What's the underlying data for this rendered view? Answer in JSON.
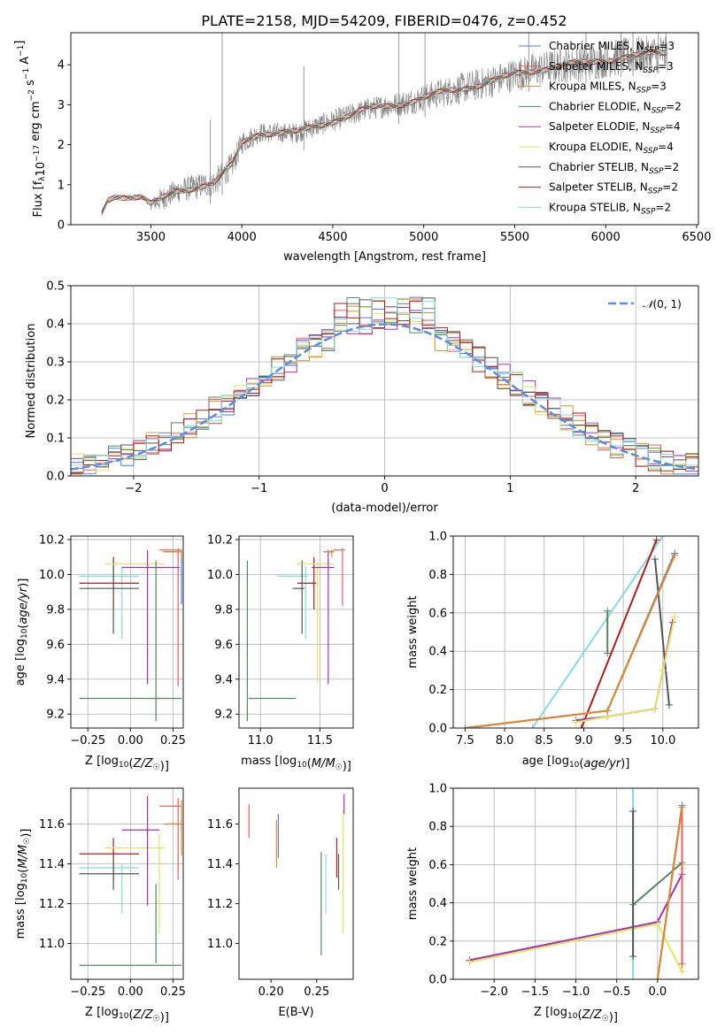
{
  "figure_title": "PLATE=2158, MJD=54209, FIBERID=0476, z=0.452",
  "colors": {
    "Chabrier MILES": "#4d7fd6",
    "Salpeter MILES": "#f45b5b",
    "Kroupa MILES": "#e08a2b",
    "Chabrier ELODIE": "#55885f",
    "Salpeter ELODIE": "#a532b5",
    "Kroupa ELODIE": "#dfe65a",
    "Chabrier STELIB": "#555555",
    "Salpeter STELIB": "#b21c1c",
    "Kroupa STELIB": "#86dbe0",
    "Normal": "#5b8ee0",
    "data": "#808080"
  },
  "legend": [
    {
      "model": "Chabrier MILES",
      "label": "Chabrier MILES, N",
      "sub": "SSP",
      "n": "=3"
    },
    {
      "model": "Salpeter MILES",
      "label": "Salpeter MILES, N",
      "sub": "SSP",
      "n": "=3"
    },
    {
      "model": "Kroupa MILES",
      "label": "Kroupa MILES, N",
      "sub": "SSP",
      "n": "=3"
    },
    {
      "model": "Chabrier ELODIE",
      "label": "Chabrier ELODIE, N",
      "sub": "SSP",
      "n": "=2"
    },
    {
      "model": "Salpeter ELODIE",
      "label": "Salpeter ELODIE, N",
      "sub": "SSP",
      "n": "=4"
    },
    {
      "model": "Kroupa ELODIE",
      "label": "Kroupa ELODIE, N",
      "sub": "SSP",
      "n": "=4"
    },
    {
      "model": "Chabrier STELIB",
      "label": "Chabrier STELIB, N",
      "sub": "SSP",
      "n": "=2"
    },
    {
      "model": "Salpeter STELIB",
      "label": "Salpeter STELIB, N",
      "sub": "SSP",
      "n": "=2"
    },
    {
      "model": "Kroupa STELIB",
      "label": "Kroupa STELIB, N",
      "sub": "SSP",
      "n": "=2"
    }
  ],
  "chart_data": [
    {
      "id": "spectrum",
      "type": "line",
      "xlabel": "wavelength [Angstrom, rest frame]",
      "ylabel": "Flux [f_λ 10^-17 erg cm^-2 s^-1 A^-1]",
      "xlim": [
        3060,
        6510
      ],
      "ylim": [
        0,
        4.8
      ],
      "xticks": [
        3500,
        4000,
        4500,
        5000,
        5500,
        6000,
        6500
      ],
      "yticks": [
        0,
        1,
        2,
        3,
        4
      ],
      "grid": false,
      "legend_position": "top-right",
      "x_range_data": [
        3230,
        6340
      ],
      "continuum_knots": [
        [
          3230,
          0.25
        ],
        [
          3260,
          0.6
        ],
        [
          3300,
          0.72
        ],
        [
          3450,
          0.7
        ],
        [
          3500,
          0.5
        ],
        [
          3650,
          0.85
        ],
        [
          3850,
          1.05
        ],
        [
          3950,
          1.5
        ],
        [
          4000,
          2.05
        ],
        [
          4100,
          2.3
        ],
        [
          4300,
          2.3
        ],
        [
          4500,
          2.6
        ],
        [
          4700,
          2.9
        ],
        [
          4900,
          3.05
        ],
        [
          5100,
          3.3
        ],
        [
          5300,
          3.5
        ],
        [
          5500,
          3.75
        ],
        [
          5700,
          3.95
        ],
        [
          5900,
          4.05
        ],
        [
          6100,
          4.2
        ],
        [
          6340,
          4.3
        ]
      ],
      "noise_knots": [
        [
          3230,
          0.03
        ],
        [
          3480,
          0.06
        ],
        [
          3550,
          0.3
        ],
        [
          3900,
          0.35
        ],
        [
          4100,
          0.25
        ],
        [
          4800,
          0.3
        ],
        [
          5200,
          0.4
        ],
        [
          6340,
          0.5
        ]
      ],
      "spike_wavelengths": [
        3827,
        3892,
        4341,
        4862,
        5007,
        5577,
        5892,
        6085,
        6150,
        6290
      ]
    },
    {
      "id": "residuals",
      "type": "histogram",
      "xlabel": "(data-model)/error",
      "ylabel": "Normed distribution",
      "xlim": [
        -2.5,
        2.5
      ],
      "ylim": [
        0,
        0.5
      ],
      "xticks": [
        -2,
        -1,
        0,
        1,
        2
      ],
      "yticks": [
        0,
        0.1,
        0.2,
        0.3,
        0.4,
        0.5
      ],
      "grid": true,
      "bin_width": 0.1,
      "curve": {
        "name": "N(0,1)",
        "mean": 0,
        "sigma": 1
      },
      "legend_position": "top-right"
    },
    {
      "id": "age_vs_Z",
      "type": "errorbar",
      "xlabel": "Z [log10(Z/Z☉)]",
      "ylabel": "age [log10(age/yr)]",
      "xlim": [
        -0.35,
        0.31
      ],
      "ylim": [
        9.12,
        10.22
      ],
      "xticks": [
        -0.25,
        0.0,
        0.25
      ],
      "yticks": [
        9.2,
        9.4,
        9.6,
        9.8,
        10.0,
        10.2
      ],
      "grid": true,
      "points": [
        {
          "model": "Kroupa STELIB",
          "x": -0.05,
          "xerr": [
            0.25,
            0.1
          ],
          "y": 9.99,
          "yerr": [
            0.36,
            0.06
          ]
        },
        {
          "model": "Salpeter STELIB",
          "x": -0.1,
          "xerr": [
            0.2,
            0.15
          ],
          "y": 9.95,
          "yerr": [
            0.15,
            0.15
          ]
        },
        {
          "model": "Chabrier STELIB",
          "x": -0.1,
          "xerr": [
            0.2,
            0.15
          ],
          "y": 9.92,
          "yerr": [
            0.26,
            0.16
          ]
        },
        {
          "model": "Kroupa ELODIE",
          "x": 0.05,
          "xerr": [
            0.2,
            0.15
          ],
          "y": 10.06,
          "yerr": [
            0,
            0
          ]
        },
        {
          "model": "Salpeter ELODIE",
          "x": 0.1,
          "xerr": [
            0.15,
            0.19
          ],
          "y": 10.04,
          "yerr": [
            0.67,
            0.1
          ]
        },
        {
          "model": "Chabrier ELODIE",
          "x": 0.0,
          "xerr": [
            0.3,
            0.3
          ],
          "y": 9.29,
          "yerr": [
            0,
            0
          ]
        },
        {
          "model": "Chabrier ELODIE",
          "x": 0.15,
          "xerr": [
            0,
            0
          ],
          "y": 9.63,
          "yerr": [
            0.47,
            0.45
          ]
        },
        {
          "model": "Chabrier MILES",
          "x": 0.3,
          "xerr": [
            0.1,
            0
          ],
          "y": 10.13,
          "yerr": [
            0.3,
            0.01
          ]
        },
        {
          "model": "Salpeter MILES",
          "x": 0.28,
          "xerr": [
            0.11,
            0.02
          ],
          "y": 10.14,
          "yerr": [
            0.78,
            0.01
          ]
        },
        {
          "model": "Kroupa MILES",
          "x": 0.3,
          "xerr": [
            0.11,
            0
          ],
          "y": 10.13,
          "yerr": [
            0.04,
            0.01
          ]
        }
      ]
    },
    {
      "id": "age_vs_mass",
      "type": "errorbar",
      "xlabel": "mass [log10(M/M☉)]",
      "ylabel": "",
      "xlim": [
        10.82,
        11.78
      ],
      "ylim": [
        9.12,
        10.22
      ],
      "xticks": [
        11.0,
        11.5
      ],
      "yticks": [
        9.2,
        9.4,
        9.6,
        9.8,
        10.0,
        10.2
      ],
      "grid": true,
      "points": [
        {
          "model": "Kroupa STELIB",
          "x": 11.38,
          "xerr": [
            0.23,
            0.02
          ],
          "y": 9.99,
          "yerr": [
            0.36,
            0.06
          ]
        },
        {
          "model": "Salpeter STELIB",
          "x": 11.45,
          "xerr": [
            0.14,
            0.02
          ],
          "y": 9.95,
          "yerr": [
            0.15,
            0.15
          ]
        },
        {
          "model": "Chabrier STELIB",
          "x": 11.35,
          "xerr": [
            0.08,
            0.02
          ],
          "y": 9.92,
          "yerr": [
            0.26,
            0.16
          ]
        },
        {
          "model": "Kroupa ELODIE",
          "x": 11.48,
          "xerr": [
            0.18,
            0.14
          ],
          "y": 10.06,
          "yerr": [
            0.68,
            0
          ]
        },
        {
          "model": "Salpeter ELODIE",
          "x": 11.57,
          "xerr": [
            0.14,
            0.05
          ],
          "y": 10.04,
          "yerr": [
            0.67,
            0.1
          ]
        },
        {
          "model": "Chabrier ELODIE",
          "x": 11.1,
          "xerr": [
            0.2,
            0.2
          ],
          "y": 9.29,
          "yerr": [
            0,
            0
          ]
        },
        {
          "model": "Chabrier ELODIE",
          "x": 10.89,
          "xerr": [
            0,
            0
          ],
          "y": 9.63,
          "yerr": [
            0.47,
            0.45
          ]
        },
        {
          "model": "Chabrier MILES",
          "x": 11.6,
          "xerr": [
            0.07,
            0.02
          ],
          "y": 10.13,
          "yerr": [
            0.01,
            0.01
          ]
        },
        {
          "model": "Salpeter MILES",
          "x": 11.69,
          "xerr": [
            0.08,
            0.02
          ],
          "y": 10.14,
          "yerr": [
            0.32,
            0.01
          ]
        },
        {
          "model": "Kroupa MILES",
          "x": 11.6,
          "xerr": [
            0.07,
            0.02
          ],
          "y": 10.13,
          "yerr": [
            0.03,
            0.01
          ]
        }
      ]
    },
    {
      "id": "weight_vs_age",
      "type": "line",
      "xlabel": "age [log10(age/yr)]",
      "ylabel": "mass weight",
      "xlim": [
        7.35,
        10.45
      ],
      "ylim": [
        0,
        1.0
      ],
      "xticks": [
        7.5,
        8.0,
        8.5,
        9.0,
        9.5,
        10.0
      ],
      "yticks": [
        0.0,
        0.2,
        0.4,
        0.6,
        0.8,
        1.0
      ],
      "grid": true,
      "series": [
        {
          "model": "Kroupa STELIB",
          "x": [
            8.35,
            10.0
          ],
          "y": [
            0.0,
            1.0
          ]
        },
        {
          "model": "Chabrier ELODIE",
          "x": [
            9.3,
            9.3
          ],
          "y": [
            0.39,
            0.61
          ]
        },
        {
          "model": "Salpeter STELIB",
          "x": [
            8.97,
            9.92
          ],
          "y": [
            0.0,
            0.98
          ]
        },
        {
          "model": "Chabrier STELIB",
          "x": [
            9.9,
            10.08
          ],
          "y": [
            0.88,
            0.12
          ]
        },
        {
          "model": "Salpeter ELODIE",
          "x": [
            8.9,
            9.3,
            9.9,
            10.0,
            10.12
          ],
          "y": [
            0.04,
            0.06,
            0.1,
            0.3,
            0.55
          ]
        },
        {
          "model": "Kroupa ELODIE",
          "x": [
            8.9,
            9.3,
            9.9,
            10.0,
            10.15
          ],
          "y": [
            0.03,
            0.06,
            0.1,
            0.3,
            0.58
          ]
        },
        {
          "model": "Salpeter MILES",
          "x": [
            7.5,
            9.3,
            10.15
          ],
          "y": [
            0.0,
            0.09,
            0.91
          ]
        },
        {
          "model": "Chabrier MILES",
          "x": [
            7.5,
            9.3,
            10.15
          ],
          "y": [
            0.0,
            0.09,
            0.91
          ]
        },
        {
          "model": "Kroupa MILES",
          "x": [
            7.5,
            9.3,
            10.15
          ],
          "y": [
            0.0,
            0.09,
            0.9
          ]
        }
      ]
    },
    {
      "id": "mass_vs_Z",
      "type": "errorbar",
      "xlabel": "Z [log10(Z/Z☉)]",
      "ylabel": "mass [log10(M/M☉)]",
      "xlim": [
        -0.35,
        0.31
      ],
      "ylim": [
        10.82,
        11.78
      ],
      "xticks": [
        -0.25,
        0.0,
        0.25
      ],
      "yticks": [
        11.0,
        11.2,
        11.4,
        11.6
      ],
      "grid": true,
      "points": [
        {
          "model": "Kroupa STELIB",
          "x": -0.05,
          "xerr": [
            0.25,
            0.1
          ],
          "y": 11.38,
          "yerr": [
            0.23,
            0.02
          ]
        },
        {
          "model": "Salpeter STELIB",
          "x": -0.1,
          "xerr": [
            0.2,
            0.15
          ],
          "y": 11.45,
          "yerr": [
            0.14,
            0.08
          ]
        },
        {
          "model": "Chabrier STELIB",
          "x": -0.1,
          "xerr": [
            0.2,
            0.15
          ],
          "y": 11.35,
          "yerr": [
            0.08,
            0.08
          ]
        },
        {
          "model": "Kroupa ELODIE",
          "x": 0.05,
          "xerr": [
            0.2,
            0.15
          ],
          "y": 11.48,
          "yerr": [
            0,
            0
          ]
        },
        {
          "model": "Kroupa ELODIE",
          "x": 0.17,
          "xerr": [
            0,
            0
          ],
          "y": 11.3,
          "yerr": [
            0.25,
            0.25
          ]
        },
        {
          "model": "Salpeter ELODIE",
          "x": 0.1,
          "xerr": [
            0.15,
            0.07
          ],
          "y": 11.57,
          "yerr": [
            0.38,
            0.17
          ]
        },
        {
          "model": "Chabrier ELODIE",
          "x": 0.0,
          "xerr": [
            0.3,
            0.3
          ],
          "y": 10.89,
          "yerr": [
            0,
            0
          ]
        },
        {
          "model": "Chabrier ELODIE",
          "x": 0.15,
          "xerr": [
            0,
            0
          ],
          "y": 11.1,
          "yerr": [
            0.2,
            0.2
          ]
        },
        {
          "model": "Chabrier MILES",
          "x": 0.3,
          "xerr": [
            0.1,
            0
          ],
          "y": 11.6,
          "yerr": [
            0.03,
            0.02
          ]
        },
        {
          "model": "Salpeter MILES",
          "x": 0.28,
          "xerr": [
            0.11,
            0.02
          ],
          "y": 11.69,
          "yerr": [
            0.37,
            0.04
          ]
        },
        {
          "model": "Kroupa MILES",
          "x": 0.3,
          "xerr": [
            0.1,
            0
          ],
          "y": 11.6,
          "yerr": [
            0.16,
            0.12
          ]
        }
      ]
    },
    {
      "id": "mass_vs_ebv",
      "type": "errorbar",
      "xlabel": "E(B-V)",
      "ylabel": "",
      "xlim": [
        0.165,
        0.29
      ],
      "ylim": [
        10.82,
        11.78
      ],
      "xticks": [
        0.2,
        0.25
      ],
      "yticks": [
        11.0,
        11.2,
        11.4,
        11.6
      ],
      "grid": false,
      "points": [
        {
          "model": "Salpeter MILES",
          "x": 0.176,
          "y": 11.63,
          "yerr": [
            0.1,
            0.07
          ]
        },
        {
          "model": "Kroupa MILES",
          "x": 0.206,
          "y": 11.5,
          "yerr": [
            0.12,
            0.12
          ]
        },
        {
          "model": "Chabrier MILES",
          "x": 0.208,
          "y": 11.54,
          "yerr": [
            0.11,
            0.11
          ]
        },
        {
          "model": "Chabrier ELODIE",
          "x": 0.255,
          "y": 11.2,
          "yerr": [
            0.26,
            0.26
          ]
        },
        {
          "model": "Kroupa STELIB",
          "x": 0.26,
          "y": 11.3,
          "yerr": [
            0.15,
            0.15
          ]
        },
        {
          "model": "Salpeter STELIB",
          "x": 0.272,
          "y": 11.43,
          "yerr": [
            0.1,
            0.1
          ]
        },
        {
          "model": "Chabrier STELIB",
          "x": 0.274,
          "y": 11.36,
          "yerr": [
            0.09,
            0.09
          ]
        },
        {
          "model": "Kroupa ELODIE",
          "x": 0.279,
          "y": 11.4,
          "yerr": [
            0.35,
            0.27
          ]
        },
        {
          "model": "Salpeter ELODIE",
          "x": 0.28,
          "y": 11.7,
          "yerr": [
            0.05,
            0.05
          ]
        }
      ]
    },
    {
      "id": "weight_vs_Z",
      "type": "line",
      "xlabel": "Z [log10(Z/Z☉)]",
      "ylabel": "mass weight",
      "xlim": [
        -2.5,
        0.5
      ],
      "ylim": [
        0,
        1.0
      ],
      "xticks": [
        -2.0,
        -1.5,
        -1.0,
        -0.5,
        0.0
      ],
      "yticks": [
        0.0,
        0.2,
        0.4,
        0.6,
        0.8,
        1.0
      ],
      "grid": true,
      "series": [
        {
          "model": "Salpeter ELODIE",
          "x": [
            -2.3,
            0.0,
            0.3
          ],
          "y": [
            0.1,
            0.3,
            0.55
          ]
        },
        {
          "model": "Kroupa ELODIE",
          "x": [
            -2.3,
            0.0,
            0.3,
            0.3
          ],
          "y": [
            0.09,
            0.29,
            0.04,
            0.58
          ]
        },
        {
          "model": "Chabrier ELODIE",
          "x": [
            -0.3,
            0.3
          ],
          "y": [
            0.39,
            0.61
          ]
        },
        {
          "model": "Kroupa STELIB",
          "x": [
            -0.3,
            -0.3
          ],
          "y": [
            0.0,
            1.0
          ]
        },
        {
          "model": "Chabrier STELIB",
          "x": [
            -0.3,
            -0.3
          ],
          "y": [
            0.12,
            0.88
          ]
        },
        {
          "model": "Salpeter MILES",
          "x": [
            0.0,
            0.3,
            0.3
          ],
          "y": [
            0.0,
            0.91,
            0.08
          ]
        },
        {
          "model": "Chabrier MILES",
          "x": [
            0.0,
            0.3
          ],
          "y": [
            0.0,
            0.91
          ]
        },
        {
          "model": "Kroupa MILES",
          "x": [
            0.0,
            0.3
          ],
          "y": [
            0.0,
            0.9
          ]
        }
      ]
    }
  ]
}
